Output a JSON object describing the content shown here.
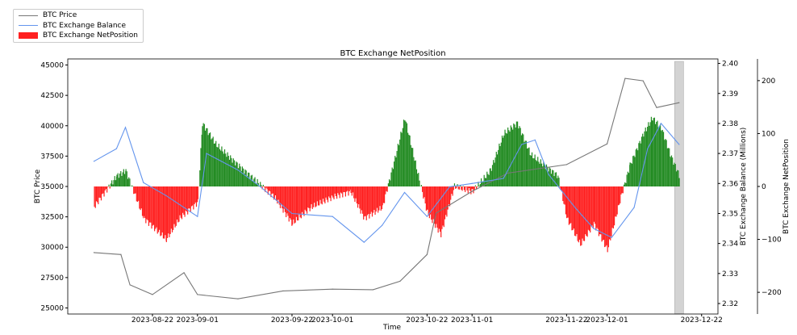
{
  "chart_data": {
    "type": "line",
    "title": "BTC Exchange NetPosition",
    "xlabel": "Time",
    "ylabel": "BTC Price",
    "ylabel_right": "BTC Exchange Balance (Millions)",
    "ylabel_right2": "BTC Exchange NetPosition",
    "legend": [
      "BTC Price",
      "BTC Exchange Balance",
      "BTC Exchange NetPosition"
    ],
    "legend_position": "top-left",
    "colors": {
      "price": "#777777",
      "balance": "#6495ed",
      "positive": "#228b22",
      "negative": "#ff2020",
      "highlight": "#d3d3d3"
    },
    "x_ticks": [
      "2023-08-22",
      "2023-09-01",
      "2023-09-22",
      "2023-10-01",
      "2023-10-22",
      "2023-11-01",
      "2023-11-22",
      "2023-12-01",
      "2023-12-22"
    ],
    "y_ticks": [
      25000,
      27500,
      30000,
      32500,
      35000,
      37500,
      40000,
      42500,
      45000
    ],
    "y_right_ticks": [
      2.32,
      2.33,
      2.34,
      2.35,
      2.36,
      2.37,
      2.38,
      2.39,
      2.4
    ],
    "y_right2_ticks": [
      -200,
      -100,
      0,
      100,
      200
    ],
    "ylim": [
      24500,
      45500
    ],
    "ylim_right": [
      2.3165,
      2.4015
    ],
    "ylim_right2": [
      -241,
      241
    ],
    "highlight_range": [
      "2023-12-16",
      "2023-12-18"
    ],
    "price": [
      [
        "2023-08-09",
        29560
      ],
      [
        "2023-08-15",
        29400
      ],
      [
        "2023-08-17",
        26900
      ],
      [
        "2023-08-22",
        26100
      ],
      [
        "2023-08-29",
        27900
      ],
      [
        "2023-09-01",
        26100
      ],
      [
        "2023-09-10",
        25750
      ],
      [
        "2023-09-20",
        26400
      ],
      [
        "2023-10-01",
        26550
      ],
      [
        "2023-10-10",
        26500
      ],
      [
        "2023-10-16",
        27200
      ],
      [
        "2023-10-22",
        29400
      ],
      [
        "2023-10-24",
        32800
      ],
      [
        "2023-11-01",
        34600
      ],
      [
        "2023-11-09",
        36100
      ],
      [
        "2023-11-22",
        36800
      ],
      [
        "2023-12-01",
        38500
      ],
      [
        "2023-12-05",
        43900
      ],
      [
        "2023-12-09",
        43700
      ],
      [
        "2023-12-12",
        41500
      ],
      [
        "2023-12-17",
        41900
      ]
    ],
    "balance": [
      [
        "2023-08-09",
        2.3674
      ],
      [
        "2023-08-14",
        2.3716
      ],
      [
        "2023-08-16",
        2.3787
      ],
      [
        "2023-08-20",
        2.3603
      ],
      [
        "2023-08-25",
        2.356
      ],
      [
        "2023-09-01",
        2.349
      ],
      [
        "2023-09-03",
        2.37
      ],
      [
        "2023-09-10",
        2.3645
      ],
      [
        "2023-09-15",
        2.3589
      ],
      [
        "2023-09-22",
        2.35
      ],
      [
        "2023-10-01",
        2.349
      ],
      [
        "2023-10-08",
        2.3404
      ],
      [
        "2023-10-12",
        2.346
      ],
      [
        "2023-10-17",
        2.357
      ],
      [
        "2023-10-22",
        2.349
      ],
      [
        "2023-10-27",
        2.3589
      ],
      [
        "2023-11-01",
        2.36
      ],
      [
        "2023-11-08",
        2.3617
      ],
      [
        "2023-11-12",
        2.373
      ],
      [
        "2023-11-15",
        2.3745
      ],
      [
        "2023-11-18",
        2.363
      ],
      [
        "2023-11-24",
        2.3518
      ],
      [
        "2023-11-28",
        2.345
      ],
      [
        "2023-12-02",
        2.342
      ],
      [
        "2023-12-07",
        2.352
      ],
      [
        "2023-12-10",
        2.3716
      ],
      [
        "2023-12-13",
        2.38
      ],
      [
        "2023-12-17",
        2.373
      ]
    ],
    "netposition": [
      [
        "2023-08-09",
        -38
      ],
      [
        "2023-08-14",
        20
      ],
      [
        "2023-08-16",
        30
      ],
      [
        "2023-08-20",
        -60
      ],
      [
        "2023-08-25",
        -100
      ],
      [
        "2023-08-28",
        -60
      ],
      [
        "2023-09-01",
        -30
      ],
      [
        "2023-09-02",
        120
      ],
      [
        "2023-09-05",
        80
      ],
      [
        "2023-09-10",
        40
      ],
      [
        "2023-09-14",
        10
      ],
      [
        "2023-09-18",
        -20
      ],
      [
        "2023-09-22",
        -70
      ],
      [
        "2023-09-26",
        -40
      ],
      [
        "2023-10-01",
        -20
      ],
      [
        "2023-10-05",
        -10
      ],
      [
        "2023-10-08",
        -60
      ],
      [
        "2023-10-12",
        -40
      ],
      [
        "2023-10-15",
        60
      ],
      [
        "2023-10-17",
        130
      ],
      [
        "2023-10-20",
        20
      ],
      [
        "2023-10-22",
        -50
      ],
      [
        "2023-10-25",
        -90
      ],
      [
        "2023-10-28",
        0
      ],
      [
        "2023-11-01",
        -10
      ],
      [
        "2023-11-05",
        30
      ],
      [
        "2023-11-08",
        100
      ],
      [
        "2023-11-11",
        120
      ],
      [
        "2023-11-14",
        60
      ],
      [
        "2023-11-17",
        40
      ],
      [
        "2023-11-20",
        20
      ],
      [
        "2023-11-22",
        -60
      ],
      [
        "2023-11-25",
        -110
      ],
      [
        "2023-11-28",
        -70
      ],
      [
        "2023-12-01",
        -120
      ],
      [
        "2023-12-04",
        -20
      ],
      [
        "2023-12-06",
        40
      ],
      [
        "2023-12-09",
        100
      ],
      [
        "2023-12-11",
        130
      ],
      [
        "2023-12-13",
        110
      ],
      [
        "2023-12-15",
        60
      ],
      [
        "2023-12-17",
        20
      ]
    ]
  }
}
